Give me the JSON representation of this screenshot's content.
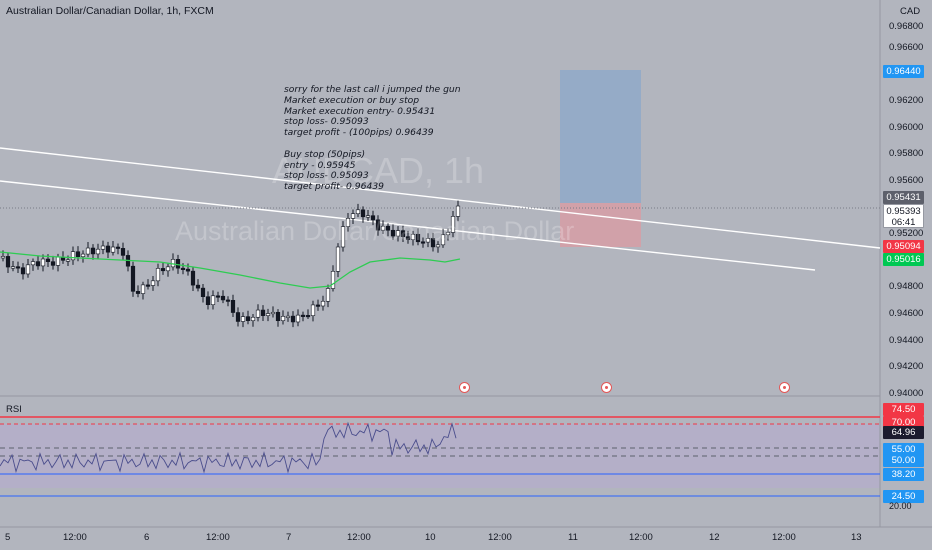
{
  "chart": {
    "title": "Australian Dollar/Canadian Dollar, 1h, FXCM",
    "currency": "CAD",
    "watermark_symbol": "AUDCAD, 1h",
    "watermark_name": "Australian Dollar/Canadian Dollar",
    "rsi_label": "RSI"
  },
  "note_text": "sorry for the last call i jumped the gun\nMarket execution or buy stop\nMarket execution entry- 0.95431\nstop loss- 0.95093\ntarget profit - (100pips) 0.96439\n\nBuy stop (50pips)\nentry - 0.95945\nstop loss- 0.95093\ntarget profit- 0.96439",
  "price_axis": {
    "ticks": [
      "0.96800",
      "0.96600",
      "0.96200",
      "0.96000",
      "0.95800",
      "0.95600",
      "0.95200",
      "0.94800",
      "0.94600",
      "0.94400",
      "0.94200",
      "0.94000"
    ]
  },
  "price_badges": {
    "target": "0.96440",
    "entry": "0.95431",
    "current": "0.95393",
    "countdown": "06:41",
    "stop": "0.95094",
    "ma": "0.95016"
  },
  "rsi_axis": {
    "badges": [
      "74.50",
      "70.00",
      "64.96",
      "55.00",
      "50.00",
      "38.20",
      "24.50"
    ],
    "ticks": [
      "20.00"
    ]
  },
  "time_axis": [
    "5",
    "12:00",
    "6",
    "12:00",
    "7",
    "12:00",
    "10",
    "12:00",
    "11",
    "12:00",
    "12",
    "12:00",
    "13"
  ],
  "colors": {
    "background": "#b2b5be",
    "ma_line": "#2ecc52",
    "target_zone": "#8fa9c9",
    "stop_zone": "#d49ea6",
    "rsi_band": "#b6a9cf",
    "target_badge": "#2196f3",
    "stop_badge": "#f23645",
    "ma_badge": "#00c853"
  },
  "icons": [
    "canada-flag-icon"
  ],
  "chart_data": {
    "type": "candlestick",
    "symbol": "AUDCAD",
    "timeframe": "1h",
    "position": {
      "entry": 0.95431,
      "stop": 0.95094,
      "target": 0.9644
    },
    "last_price": 0.95393,
    "moving_average_last": 0.95016,
    "rsi_last": 64.96,
    "rsi_levels": [
      74.5,
      70,
      55,
      50,
      38.2,
      24.5
    ]
  }
}
